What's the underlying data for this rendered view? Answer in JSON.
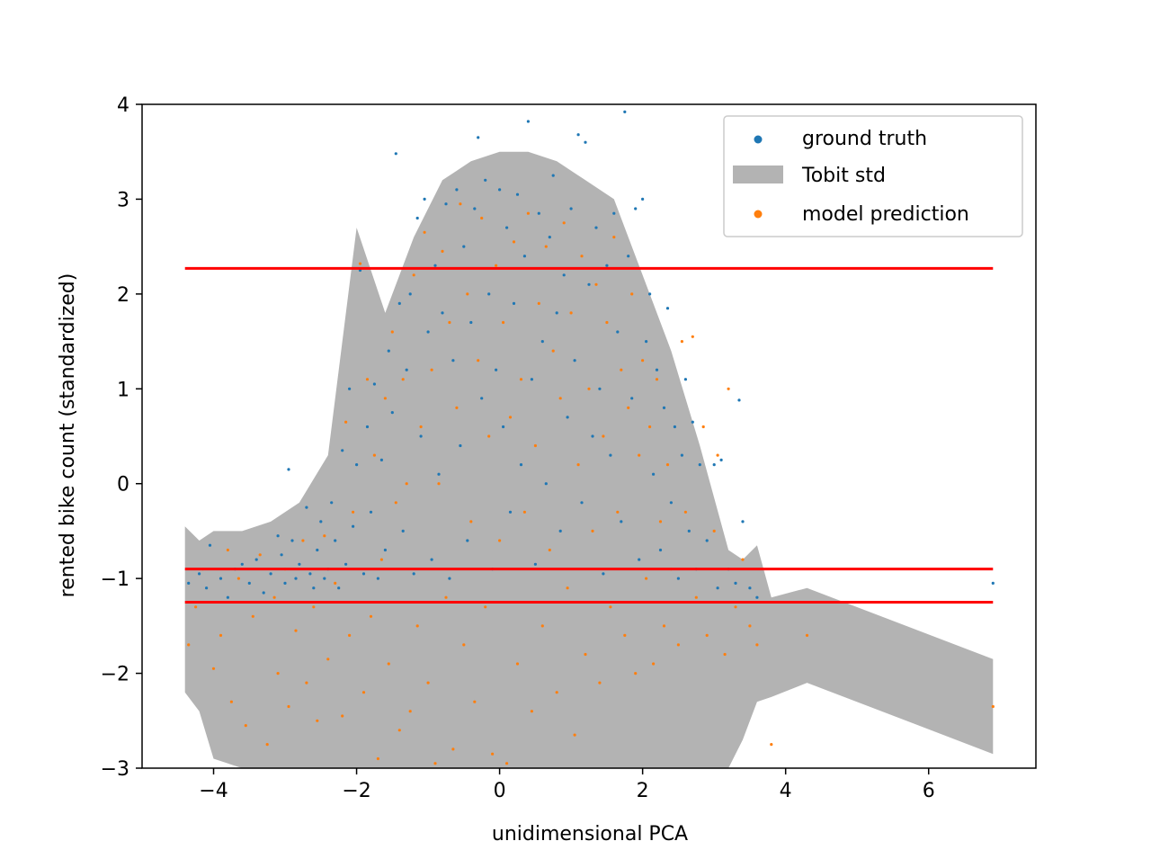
{
  "chart_data": {
    "type": "scatter",
    "title": "",
    "xlabel": "unidimensional PCA",
    "ylabel": "rented bike count (standardized)",
    "xlim": [
      -5,
      7.5
    ],
    "ylim": [
      -3,
      4
    ],
    "x_ticks": [
      {
        "value": -4,
        "label": "−4"
      },
      {
        "value": -2,
        "label": "−2"
      },
      {
        "value": 0,
        "label": "0"
      },
      {
        "value": 2,
        "label": "2"
      },
      {
        "value": 4,
        "label": "4"
      },
      {
        "value": 6,
        "label": "6"
      }
    ],
    "y_ticks": [
      {
        "value": -3,
        "label": "−3"
      },
      {
        "value": -2,
        "label": "−2"
      },
      {
        "value": -1,
        "label": "−1"
      },
      {
        "value": 0,
        "label": "0"
      },
      {
        "value": 1,
        "label": "1"
      },
      {
        "value": 2,
        "label": "2"
      },
      {
        "value": 3,
        "label": "3"
      },
      {
        "value": 4,
        "label": "4"
      }
    ],
    "grid": false,
    "legend": {
      "position": "top-right",
      "entries": [
        {
          "label": "ground truth",
          "color": "#1f77b4",
          "kind": "marker"
        },
        {
          "label": "Tobit std",
          "color": "#b3b3b3",
          "kind": "band"
        },
        {
          "label": "model prediction",
          "color": "#ff7f0e",
          "kind": "marker"
        }
      ]
    },
    "horizontal_lines": [
      {
        "y": 2.27,
        "x_from": -4.4,
        "x_to": 6.9,
        "color": "#ff0000"
      },
      {
        "y": -0.9,
        "x_from": -4.4,
        "x_to": 6.9,
        "color": "#ff0000"
      },
      {
        "y": -1.25,
        "x_from": -4.4,
        "x_to": 6.9,
        "color": "#ff0000"
      }
    ],
    "tobit_std_band": {
      "color": "#b3b3b3",
      "x": [
        -4.4,
        -4.2,
        -4.0,
        -3.6,
        -3.2,
        -2.8,
        -2.4,
        -2.0,
        -1.6,
        -1.2,
        -0.8,
        -0.4,
        0.0,
        0.4,
        0.8,
        1.2,
        1.6,
        2.0,
        2.4,
        2.8,
        3.2,
        3.4,
        3.6,
        3.8,
        4.3,
        6.9
      ],
      "upper": [
        -0.45,
        -0.6,
        -0.5,
        -0.5,
        -0.4,
        -0.2,
        0.3,
        2.7,
        1.8,
        2.6,
        3.2,
        3.4,
        3.5,
        3.5,
        3.4,
        3.2,
        3.0,
        2.2,
        1.4,
        0.4,
        -0.7,
        -0.8,
        -0.65,
        -1.2,
        -1.1,
        -1.85
      ],
      "lower": [
        -2.2,
        -2.4,
        -2.9,
        -3.0,
        -3.0,
        -3.0,
        -3.0,
        -3.0,
        -3.0,
        -3.0,
        -3.0,
        -3.0,
        -3.0,
        -3.0,
        -3.0,
        -3.0,
        -3.0,
        -3.0,
        -3.0,
        -3.0,
        -3.0,
        -2.7,
        -2.3,
        -2.25,
        -2.1,
        -2.85
      ]
    },
    "series": [
      {
        "name": "ground truth",
        "color": "#1f77b4",
        "points": [
          [
            -4.35,
            -1.05
          ],
          [
            -4.2,
            -0.95
          ],
          [
            -4.1,
            -1.1
          ],
          [
            -4.05,
            -0.65
          ],
          [
            -3.9,
            -1.0
          ],
          [
            -3.8,
            -1.2
          ],
          [
            -3.7,
            -0.9
          ],
          [
            -3.6,
            -0.85
          ],
          [
            -3.5,
            -1.05
          ],
          [
            -3.4,
            -0.8
          ],
          [
            -3.3,
            -1.15
          ],
          [
            -3.2,
            -0.95
          ],
          [
            -3.1,
            -0.55
          ],
          [
            -3.05,
            -0.75
          ],
          [
            -3.0,
            -1.05
          ],
          [
            -2.95,
            0.15
          ],
          [
            -2.9,
            -0.6
          ],
          [
            -2.85,
            -1.0
          ],
          [
            -2.8,
            -0.85
          ],
          [
            -2.7,
            -0.25
          ],
          [
            -2.65,
            -0.95
          ],
          [
            -2.6,
            -1.1
          ],
          [
            -2.55,
            -0.7
          ],
          [
            -2.5,
            -0.4
          ],
          [
            -2.45,
            -1.0
          ],
          [
            -2.4,
            -0.9
          ],
          [
            -2.35,
            -0.2
          ],
          [
            -2.3,
            -0.6
          ],
          [
            -2.25,
            -1.1
          ],
          [
            -2.2,
            0.35
          ],
          [
            -2.15,
            -0.85
          ],
          [
            -2.1,
            1.0
          ],
          [
            -2.05,
            -0.45
          ],
          [
            -2.0,
            0.2
          ],
          [
            -1.95,
            2.25
          ],
          [
            -1.9,
            -0.95
          ],
          [
            -1.85,
            0.6
          ],
          [
            -1.8,
            -0.3
          ],
          [
            -1.75,
            1.05
          ],
          [
            -1.7,
            -1.0
          ],
          [
            -1.65,
            0.25
          ],
          [
            -1.6,
            -0.7
          ],
          [
            -1.55,
            1.4
          ],
          [
            -1.5,
            0.75
          ],
          [
            -1.45,
            3.48
          ],
          [
            -1.4,
            1.9
          ],
          [
            -1.35,
            -0.5
          ],
          [
            -1.3,
            1.2
          ],
          [
            -1.25,
            2.0
          ],
          [
            -1.2,
            -0.95
          ],
          [
            -1.15,
            2.8
          ],
          [
            -1.1,
            0.5
          ],
          [
            -1.05,
            3.0
          ],
          [
            -1.0,
            1.6
          ],
          [
            -0.95,
            -0.8
          ],
          [
            -0.9,
            2.3
          ],
          [
            -0.85,
            0.1
          ],
          [
            -0.8,
            1.8
          ],
          [
            -0.75,
            2.95
          ],
          [
            -0.7,
            -1.0
          ],
          [
            -0.65,
            1.3
          ],
          [
            -0.6,
            3.1
          ],
          [
            -0.55,
            0.4
          ],
          [
            -0.5,
            2.5
          ],
          [
            -0.45,
            -0.6
          ],
          [
            -0.4,
            1.7
          ],
          [
            -0.35,
            2.9
          ],
          [
            -0.3,
            3.65
          ],
          [
            -0.25,
            0.9
          ],
          [
            -0.2,
            3.2
          ],
          [
            -0.15,
            2.0
          ],
          [
            -0.1,
            -0.9
          ],
          [
            -0.05,
            1.2
          ],
          [
            0.0,
            3.1
          ],
          [
            0.05,
            0.6
          ],
          [
            0.1,
            2.7
          ],
          [
            0.15,
            -0.3
          ],
          [
            0.2,
            1.9
          ],
          [
            0.25,
            3.05
          ],
          [
            0.3,
            0.2
          ],
          [
            0.35,
            2.4
          ],
          [
            0.4,
            3.82
          ],
          [
            0.45,
            1.1
          ],
          [
            0.5,
            -0.85
          ],
          [
            0.55,
            2.85
          ],
          [
            0.6,
            1.5
          ],
          [
            0.65,
            0.0
          ],
          [
            0.7,
            2.6
          ],
          [
            0.75,
            3.25
          ],
          [
            0.8,
            1.8
          ],
          [
            0.85,
            -0.5
          ],
          [
            0.9,
            2.2
          ],
          [
            0.95,
            0.7
          ],
          [
            1.0,
            2.9
          ],
          [
            1.05,
            1.3
          ],
          [
            1.1,
            3.68
          ],
          [
            1.15,
            -0.2
          ],
          [
            1.2,
            3.6
          ],
          [
            1.25,
            2.1
          ],
          [
            1.3,
            0.5
          ],
          [
            1.35,
            2.7
          ],
          [
            1.4,
            1.0
          ],
          [
            1.45,
            -0.95
          ],
          [
            1.5,
            2.3
          ],
          [
            1.55,
            0.3
          ],
          [
            1.6,
            2.85
          ],
          [
            1.65,
            1.6
          ],
          [
            1.7,
            -0.4
          ],
          [
            1.75,
            3.92
          ],
          [
            1.8,
            2.4
          ],
          [
            1.85,
            0.9
          ],
          [
            1.9,
            2.9
          ],
          [
            1.95,
            -0.8
          ],
          [
            2.0,
            3.0
          ],
          [
            2.05,
            1.5
          ],
          [
            2.1,
            2.0
          ],
          [
            2.15,
            0.1
          ],
          [
            2.2,
            1.2
          ],
          [
            2.25,
            -0.7
          ],
          [
            2.3,
            0.8
          ],
          [
            2.35,
            1.85
          ],
          [
            2.4,
            -0.2
          ],
          [
            2.45,
            0.6
          ],
          [
            2.5,
            -1.0
          ],
          [
            2.55,
            0.3
          ],
          [
            2.6,
            1.1
          ],
          [
            2.65,
            -0.5
          ],
          [
            2.7,
            0.65
          ],
          [
            2.75,
            -0.9
          ],
          [
            2.8,
            0.2
          ],
          [
            2.9,
            -0.6
          ],
          [
            3.0,
            0.2
          ],
          [
            3.05,
            -1.1
          ],
          [
            3.1,
            0.25
          ],
          [
            3.2,
            -0.9
          ],
          [
            3.3,
            -1.05
          ],
          [
            3.35,
            0.88
          ],
          [
            3.4,
            -0.4
          ],
          [
            3.5,
            -1.1
          ],
          [
            3.6,
            -1.2
          ],
          [
            6.9,
            -1.05
          ]
        ]
      },
      {
        "name": "model prediction",
        "color": "#ff7f0e",
        "points": [
          [
            -4.35,
            -1.7
          ],
          [
            -4.25,
            -1.3
          ],
          [
            -4.15,
            -0.9
          ],
          [
            -4.0,
            -1.95
          ],
          [
            -3.9,
            -1.6
          ],
          [
            -3.8,
            -0.7
          ],
          [
            -3.75,
            -2.3
          ],
          [
            -3.65,
            -1.0
          ],
          [
            -3.55,
            -2.55
          ],
          [
            -3.45,
            -1.4
          ],
          [
            -3.35,
            -0.75
          ],
          [
            -3.25,
            -2.75
          ],
          [
            -3.15,
            -1.2
          ],
          [
            -3.1,
            -2.0
          ],
          [
            -3.0,
            -0.9
          ],
          [
            -2.95,
            -2.35
          ],
          [
            -2.85,
            -1.55
          ],
          [
            -2.75,
            -0.6
          ],
          [
            -2.7,
            -2.1
          ],
          [
            -2.6,
            -1.3
          ],
          [
            -2.55,
            -2.5
          ],
          [
            -2.45,
            -0.55
          ],
          [
            -2.4,
            -1.85
          ],
          [
            -2.3,
            -1.05
          ],
          [
            -2.2,
            -2.45
          ],
          [
            -2.15,
            0.65
          ],
          [
            -2.1,
            -1.6
          ],
          [
            -2.05,
            -0.3
          ],
          [
            -1.95,
            2.32
          ],
          [
            -1.9,
            -2.2
          ],
          [
            -1.85,
            1.1
          ],
          [
            -1.8,
            -1.4
          ],
          [
            -1.75,
            0.3
          ],
          [
            -1.7,
            -2.9
          ],
          [
            -1.65,
            -0.8
          ],
          [
            -1.6,
            0.9
          ],
          [
            -1.55,
            -1.9
          ],
          [
            -1.5,
            1.6
          ],
          [
            -1.45,
            -0.2
          ],
          [
            -1.4,
            -2.6
          ],
          [
            -1.35,
            1.1
          ],
          [
            -1.3,
            0.0
          ],
          [
            -1.25,
            -2.4
          ],
          [
            -1.2,
            2.2
          ],
          [
            -1.15,
            -1.5
          ],
          [
            -1.1,
            0.6
          ],
          [
            -1.05,
            2.65
          ],
          [
            -1.0,
            -2.1
          ],
          [
            -0.95,
            1.2
          ],
          [
            -0.9,
            -2.95
          ],
          [
            -0.85,
            0.0
          ],
          [
            -0.8,
            2.45
          ],
          [
            -0.75,
            -1.2
          ],
          [
            -0.7,
            1.7
          ],
          [
            -0.65,
            -2.8
          ],
          [
            -0.6,
            0.8
          ],
          [
            -0.55,
            2.95
          ],
          [
            -0.5,
            -1.7
          ],
          [
            -0.45,
            2.0
          ],
          [
            -0.4,
            -0.4
          ],
          [
            -0.35,
            -2.3
          ],
          [
            -0.3,
            1.3
          ],
          [
            -0.25,
            2.8
          ],
          [
            -0.2,
            -1.3
          ],
          [
            -0.15,
            0.5
          ],
          [
            -0.1,
            -2.85
          ],
          [
            -0.05,
            2.3
          ],
          [
            0.0,
            -0.6
          ],
          [
            0.05,
            1.7
          ],
          [
            0.1,
            -2.95
          ],
          [
            0.15,
            0.7
          ],
          [
            0.2,
            2.55
          ],
          [
            0.25,
            -1.9
          ],
          [
            0.3,
            1.1
          ],
          [
            0.35,
            -0.3
          ],
          [
            0.4,
            2.85
          ],
          [
            0.45,
            -2.4
          ],
          [
            0.5,
            0.4
          ],
          [
            0.55,
            1.9
          ],
          [
            0.6,
            -1.5
          ],
          [
            0.65,
            2.5
          ],
          [
            0.7,
            -0.7
          ],
          [
            0.75,
            1.4
          ],
          [
            0.8,
            -2.2
          ],
          [
            0.85,
            0.9
          ],
          [
            0.9,
            2.75
          ],
          [
            0.95,
            -1.1
          ],
          [
            1.0,
            1.8
          ],
          [
            1.05,
            -2.65
          ],
          [
            1.1,
            0.2
          ],
          [
            1.15,
            2.4
          ],
          [
            1.2,
            -1.8
          ],
          [
            1.25,
            1.0
          ],
          [
            1.3,
            -0.5
          ],
          [
            1.35,
            2.1
          ],
          [
            1.4,
            -2.1
          ],
          [
            1.45,
            0.5
          ],
          [
            1.5,
            1.7
          ],
          [
            1.55,
            -1.3
          ],
          [
            1.6,
            2.6
          ],
          [
            1.65,
            -0.3
          ],
          [
            1.7,
            1.2
          ],
          [
            1.75,
            -1.6
          ],
          [
            1.8,
            0.8
          ],
          [
            1.85,
            2.0
          ],
          [
            1.9,
            -2.0
          ],
          [
            1.95,
            0.3
          ],
          [
            2.0,
            1.3
          ],
          [
            2.05,
            -1.0
          ],
          [
            2.1,
            0.6
          ],
          [
            2.15,
            -1.9
          ],
          [
            2.2,
            1.1
          ],
          [
            2.25,
            -0.4
          ],
          [
            2.3,
            -1.5
          ],
          [
            2.35,
            0.2
          ],
          [
            2.4,
            -0.9
          ],
          [
            2.5,
            -1.7
          ],
          [
            2.55,
            1.5
          ],
          [
            2.6,
            -0.3
          ],
          [
            2.7,
            1.55
          ],
          [
            2.75,
            -1.2
          ],
          [
            2.85,
            0.6
          ],
          [
            2.9,
            -1.6
          ],
          [
            3.0,
            -0.5
          ],
          [
            3.05,
            0.3
          ],
          [
            3.15,
            -1.8
          ],
          [
            3.2,
            1.0
          ],
          [
            3.3,
            -1.3
          ],
          [
            3.4,
            -0.8
          ],
          [
            3.5,
            -1.5
          ],
          [
            3.6,
            -1.7
          ],
          [
            3.8,
            -2.75
          ],
          [
            4.3,
            -1.6
          ],
          [
            6.9,
            -2.35
          ]
        ]
      }
    ]
  }
}
